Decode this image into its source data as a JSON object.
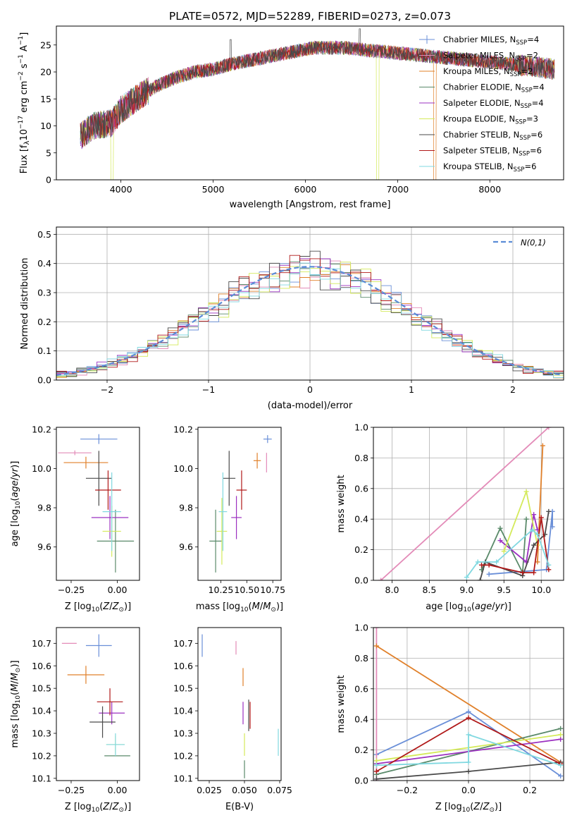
{
  "figure_title": "PLATE=0572, MJD=52289, FIBERID=0273, z=0.073",
  "models": [
    {
      "name": "Chabrier MILES",
      "nssp": "4",
      "color": "#6a8fd8"
    },
    {
      "name": "Salpeter MILES",
      "nssp": "2",
      "color": "#e38bb8"
    },
    {
      "name": "Kroupa MILES",
      "nssp": "2",
      "color": "#e0802a"
    },
    {
      "name": "Chabrier ELODIE",
      "nssp": "4",
      "color": "#5a8a6a"
    },
    {
      "name": "Salpeter ELODIE",
      "nssp": "4",
      "color": "#9b30c0"
    },
    {
      "name": "Kroupa ELODIE",
      "nssp": "3",
      "color": "#d4ea5a"
    },
    {
      "name": "Chabrier STELIB",
      "nssp": "6",
      "color": "#4a4a4a"
    },
    {
      "name": "Salpeter STELIB",
      "nssp": "6",
      "color": "#b01818"
    },
    {
      "name": "Kroupa STELIB",
      "nssp": "6",
      "color": "#80d8e0"
    }
  ],
  "chart_data": [
    {
      "id": "spectrum",
      "type": "line",
      "xlabel": "wavelength [Angstrom, rest frame]",
      "ylabel": "Flux [f_λ10^-17 erg cm^-2 s^-1 A^-1]",
      "xlim": [
        3300,
        8800
      ],
      "ylim": [
        0,
        28.5
      ],
      "xticks": [
        4000,
        5000,
        6000,
        7000,
        8000
      ],
      "yticks": [
        0,
        5,
        10,
        15,
        20,
        25
      ],
      "grid": false,
      "legend": "top-right",
      "continuum": [
        [
          3560,
          8
        ],
        [
          3700,
          10
        ],
        [
          3900,
          10.5
        ],
        [
          4000,
          13
        ],
        [
          4200,
          15.5
        ],
        [
          4400,
          17.5
        ],
        [
          4600,
          19
        ],
        [
          4800,
          20
        ],
        [
          5000,
          20.5
        ],
        [
          5200,
          21.5
        ],
        [
          5500,
          22.5
        ],
        [
          5800,
          23.5
        ],
        [
          6100,
          24.5
        ],
        [
          6400,
          24.5
        ],
        [
          6700,
          24
        ],
        [
          7000,
          23.5
        ],
        [
          7300,
          23
        ],
        [
          7600,
          22.5
        ],
        [
          7900,
          22
        ],
        [
          8200,
          21.5
        ],
        [
          8500,
          21
        ],
        [
          8700,
          20.5
        ]
      ]
    },
    {
      "id": "residuals",
      "type": "histogram",
      "xlabel": "(data-model)/error",
      "ylabel": "Normed distribution",
      "xlim": [
        -2.5,
        2.5
      ],
      "ylim": [
        0,
        0.525
      ],
      "xticks": [
        -2,
        -1,
        0,
        1,
        2
      ],
      "yticks": [
        0.0,
        0.1,
        0.2,
        0.3,
        0.4,
        0.5
      ],
      "grid": true,
      "bin_width": 0.1,
      "reference_curve": "N(0,1)",
      "legend": "top-right"
    },
    {
      "id": "age_vs_Z",
      "type": "errorbar",
      "xlabel": "Z [log10(Z/Z⊙)]",
      "ylabel": "age  [log10(age/yr)]",
      "xlim": [
        -0.33,
        0.12
      ],
      "ylim": [
        9.43,
        10.21
      ],
      "xticks": [
        -0.25,
        0.0
      ],
      "yticks": [
        9.6,
        9.8,
        10.0,
        10.2
      ],
      "points": [
        {
          "x": -0.1,
          "y": 10.15,
          "xerr": 0.1,
          "yerr": 0.025
        },
        {
          "x": -0.23,
          "y": 10.08,
          "xerr": 0.09,
          "yerr": 0.012
        },
        {
          "x": -0.17,
          "y": 10.03,
          "xerr": 0.12,
          "yerr": 0.03
        },
        {
          "x": -0.01,
          "y": 9.63,
          "xerr": 0.1,
          "yerr": 0.16
        },
        {
          "x": -0.04,
          "y": 9.75,
          "xerr": 0.1,
          "yerr": 0.11
        },
        {
          "x": -0.03,
          "y": 9.68,
          "xerr": 0.05,
          "yerr": 0.13
        },
        {
          "x": -0.1,
          "y": 9.95,
          "xerr": 0.07,
          "yerr": 0.14
        },
        {
          "x": -0.05,
          "y": 9.89,
          "xerr": 0.07,
          "yerr": 0.1
        },
        {
          "x": -0.03,
          "y": 9.78,
          "xerr": 0.05,
          "yerr": 0.2
        }
      ]
    },
    {
      "id": "age_vs_mass",
      "type": "errorbar",
      "xlabel": "mass [log10(M/M⊙)]",
      "ylabel": "",
      "xlim": [
        10.03,
        10.83
      ],
      "ylim": [
        9.43,
        10.21
      ],
      "xticks": [
        10.25,
        10.5,
        10.75
      ],
      "yticks": [
        9.6,
        9.8,
        10.0,
        10.2
      ],
      "points": [
        {
          "x": 10.7,
          "y": 10.15,
          "xerr": 0.04,
          "yerr": 0.02
        },
        {
          "x": 10.69,
          "y": 10.03,
          "xerr": 0.0,
          "yerr": 0.05
        },
        {
          "x": 10.6,
          "y": 10.04,
          "xerr": 0.035,
          "yerr": 0.04
        },
        {
          "x": 10.2,
          "y": 9.63,
          "xerr": 0.06,
          "yerr": 0.16
        },
        {
          "x": 10.4,
          "y": 9.75,
          "xerr": 0.05,
          "yerr": 0.11
        },
        {
          "x": 10.26,
          "y": 9.68,
          "xerr": 0.05,
          "yerr": 0.17
        },
        {
          "x": 10.33,
          "y": 9.95,
          "xerr": 0.06,
          "yerr": 0.14
        },
        {
          "x": 10.45,
          "y": 9.89,
          "xerr": 0.05,
          "yerr": 0.1
        },
        {
          "x": 10.27,
          "y": 9.78,
          "xerr": 0.04,
          "yerr": 0.2
        }
      ]
    },
    {
      "id": "massweight_vs_age",
      "type": "line",
      "xlabel": "age  [log10(age/yr)]",
      "ylabel": "mass weight",
      "xlim": [
        7.75,
        10.3
      ],
      "ylim": [
        0.0,
        1.0
      ],
      "xticks": [
        8.0,
        8.5,
        9.0,
        9.5,
        10.0
      ],
      "yticks": [
        0.0,
        0.2,
        0.4,
        0.6,
        0.8,
        1.0
      ],
      "grid": true,
      "series": [
        [
          [
            9.3,
            0.04
          ],
          [
            10.07,
            0.07
          ],
          [
            10.15,
            0.45
          ],
          [
            10.15,
            0.35
          ]
        ],
        [
          [
            7.85,
            0.0
          ],
          [
            10.1,
            1.0
          ]
        ],
        [
          [
            9.95,
            0.12
          ],
          [
            10.02,
            0.88
          ]
        ],
        [
          [
            9.2,
            0.07
          ],
          [
            9.45,
            0.34
          ],
          [
            9.75,
            0.05
          ],
          [
            9.8,
            0.4
          ]
        ],
        [
          [
            9.45,
            0.26
          ],
          [
            9.8,
            0.12
          ],
          [
            9.9,
            0.43
          ],
          [
            9.95,
            0.33
          ]
        ],
        [
          [
            9.5,
            0.19
          ],
          [
            9.8,
            0.58
          ],
          [
            9.95,
            0.23
          ]
        ],
        [
          [
            9.18,
            0.0
          ],
          [
            9.25,
            0.12
          ],
          [
            9.75,
            0.03
          ],
          [
            9.9,
            0.23
          ],
          [
            10.05,
            0.3
          ],
          [
            10.1,
            0.45
          ]
        ],
        [
          [
            9.2,
            0.1
          ],
          [
            9.3,
            0.1
          ],
          [
            9.75,
            0.05
          ],
          [
            9.9,
            0.05
          ],
          [
            10.0,
            0.41
          ],
          [
            10.1,
            0.07
          ]
        ],
        [
          [
            9.0,
            0.02
          ],
          [
            9.15,
            0.12
          ],
          [
            9.4,
            0.12
          ],
          [
            9.88,
            0.33
          ],
          [
            9.95,
            0.3
          ],
          [
            10.1,
            0.1
          ]
        ]
      ]
    },
    {
      "id": "mass_vs_Z",
      "type": "errorbar",
      "xlabel": "Z [log10(Z/Z⊙)]",
      "ylabel": "mass [log10(M/M⊙)]",
      "xlim": [
        -0.33,
        0.12
      ],
      "ylim": [
        10.09,
        10.77
      ],
      "xticks": [
        -0.25,
        0.0
      ],
      "yticks": [
        10.1,
        10.2,
        10.3,
        10.4,
        10.5,
        10.6,
        10.7
      ],
      "points": [
        {
          "x": -0.1,
          "y": 10.69,
          "xerr": 0.07,
          "yerr": 0.05
        },
        {
          "x": -0.26,
          "y": 10.7,
          "xerr": 0.04,
          "yerr": 0.0
        },
        {
          "x": -0.17,
          "y": 10.56,
          "xerr": 0.1,
          "yerr": 0.04
        },
        {
          "x": 0.0,
          "y": 10.2,
          "xerr": 0.07,
          "yerr": 0.0
        },
        {
          "x": -0.03,
          "y": 10.39,
          "xerr": 0.07,
          "yerr": 0.05
        },
        {
          "x": -0.01,
          "y": 10.25,
          "xerr": 0.05,
          "yerr": 0.04
        },
        {
          "x": -0.08,
          "y": 10.35,
          "xerr": 0.07,
          "yerr": 0.07
        },
        {
          "x": -0.04,
          "y": 10.44,
          "xerr": 0.07,
          "yerr": 0.06
        },
        {
          "x": -0.01,
          "y": 10.25,
          "xerr": 0.05,
          "yerr": 0.05
        }
      ]
    },
    {
      "id": "mass_vs_EBV",
      "type": "errorbar",
      "xlabel": "E(B-V)",
      "ylabel": "",
      "xlim": [
        0.017,
        0.076
      ],
      "ylim": [
        10.09,
        10.77
      ],
      "xticks": [
        0.025,
        0.05,
        0.075
      ],
      "yticks": [
        10.1,
        10.2,
        10.3,
        10.4,
        10.5,
        10.6,
        10.7
      ],
      "points": [
        {
          "x": 0.02,
          "y": 10.69,
          "xerr": 0.0,
          "yerr": 0.05
        },
        {
          "x": 0.044,
          "y": 10.68,
          "xerr": 0.0,
          "yerr": 0.03
        },
        {
          "x": 0.049,
          "y": 10.55,
          "xerr": 0.0,
          "yerr": 0.04
        },
        {
          "x": 0.05,
          "y": 10.14,
          "xerr": 0.0,
          "yerr": 0.04
        },
        {
          "x": 0.049,
          "y": 10.39,
          "xerr": 0.0,
          "yerr": 0.05
        },
        {
          "x": 0.05,
          "y": 10.25,
          "xerr": 0.0,
          "yerr": 0.05
        },
        {
          "x": 0.053,
          "y": 10.38,
          "xerr": 0.0,
          "yerr": 0.07
        },
        {
          "x": 0.054,
          "y": 10.38,
          "xerr": 0.0,
          "yerr": 0.06
        },
        {
          "x": 0.074,
          "y": 10.26,
          "xerr": 0.0,
          "yerr": 0.06
        }
      ]
    },
    {
      "id": "massweight_vs_Z",
      "type": "line",
      "xlabel": "Z [log10(Z/Z⊙)]",
      "ylabel": "mass weight",
      "xlim": [
        -0.31,
        0.31
      ],
      "ylim": [
        0.0,
        1.0
      ],
      "xticks": [
        -0.2,
        0.0,
        0.2
      ],
      "yticks": [
        0.0,
        0.2,
        0.4,
        0.6,
        0.8,
        1.0
      ],
      "grid": true,
      "series": [
        [
          [
            -0.3,
            0.17
          ],
          [
            0.0,
            0.45
          ],
          [
            0.3,
            0.03
          ]
        ],
        [
          [
            -0.3,
            0.0
          ],
          [
            -0.3,
            1.0
          ]
        ],
        [
          [
            -0.3,
            0.88
          ],
          [
            0.3,
            0.12
          ]
        ],
        [
          [
            -0.3,
            0.04
          ],
          [
            0.3,
            0.34
          ]
        ],
        [
          [
            -0.3,
            0.11
          ],
          [
            0.3,
            0.27
          ]
        ],
        [
          [
            -0.3,
            0.13
          ],
          [
            0.3,
            0.3
          ]
        ],
        [
          [
            -0.3,
            0.01
          ],
          [
            0.0,
            0.06
          ],
          [
            0.3,
            0.12
          ]
        ],
        [
          [
            -0.3,
            0.06
          ],
          [
            0.0,
            0.41
          ],
          [
            0.3,
            0.11
          ]
        ],
        [
          [
            -0.3,
            0.1
          ],
          [
            0.0,
            0.12
          ],
          [
            0.0,
            0.3
          ],
          [
            0.3,
            0.1
          ]
        ]
      ]
    }
  ]
}
